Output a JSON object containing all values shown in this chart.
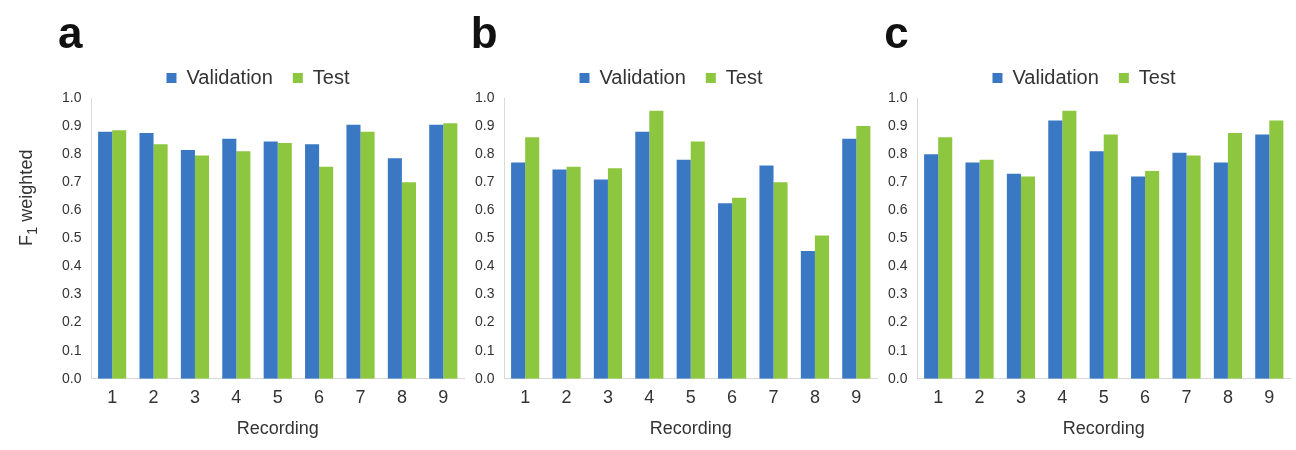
{
  "chart_data": [
    {
      "type": "bar",
      "title": "a",
      "xlabel": "Recording",
      "ylabel": "F$_{1}$ weighted",
      "categories": [
        "1",
        "2",
        "3",
        "4",
        "5",
        "6",
        "7",
        "8",
        "9"
      ],
      "series": [
        {
          "name": "Validation",
          "color": "#3a78c4",
          "values": [
            0.88,
            0.875,
            0.815,
            0.855,
            0.845,
            0.835,
            0.905,
            0.785,
            0.905
          ]
        },
        {
          "name": "Test",
          "color": "#8dc63f",
          "values": [
            0.885,
            0.835,
            0.795,
            0.81,
            0.84,
            0.755,
            0.88,
            0.7,
            0.91
          ]
        }
      ],
      "ylim": [
        0,
        1
      ],
      "yticks": [
        {
          "value": 0,
          "label": "0.0"
        },
        {
          "value": 0.1,
          "label": "0.1"
        },
        {
          "value": 0.2,
          "label": "0.2"
        },
        {
          "value": 0.3,
          "label": "0.3"
        },
        {
          "value": 0.4,
          "label": "0.4"
        },
        {
          "value": 0.5,
          "label": "0.5"
        },
        {
          "value": 0.6,
          "label": "0.6"
        },
        {
          "value": 0.7,
          "label": "0.7"
        },
        {
          "value": 0.8,
          "label": "0.8"
        },
        {
          "value": 0.9,
          "label": "0.9"
        },
        {
          "value": 1,
          "label": "1.0"
        }
      ],
      "grid": false,
      "legend": "top"
    },
    {
      "type": "bar",
      "title": "b",
      "xlabel": "Recording",
      "categories": [
        "1",
        "2",
        "3",
        "4",
        "5",
        "6",
        "7",
        "8",
        "9"
      ],
      "series": [
        {
          "name": "Validation",
          "color": "#3a78c4",
          "values": [
            0.77,
            0.745,
            0.71,
            0.88,
            0.78,
            0.625,
            0.76,
            0.455,
            0.855
          ]
        },
        {
          "name": "Test",
          "color": "#8dc63f",
          "values": [
            0.86,
            0.755,
            0.75,
            0.955,
            0.845,
            0.645,
            0.7,
            0.51,
            0.9
          ]
        }
      ],
      "ylim": [
        0,
        1
      ],
      "yticks": [
        {
          "value": 0,
          "label": "0.0"
        },
        {
          "value": 0.1,
          "label": "0.1"
        },
        {
          "value": 0.2,
          "label": "0.2"
        },
        {
          "value": 0.3,
          "label": "0.3"
        },
        {
          "value": 0.4,
          "label": "0.4"
        },
        {
          "value": 0.5,
          "label": "0.5"
        },
        {
          "value": 0.6,
          "label": "0.6"
        },
        {
          "value": 0.7,
          "label": "0.7"
        },
        {
          "value": 0.8,
          "label": "0.8"
        },
        {
          "value": 0.9,
          "label": "0.9"
        },
        {
          "value": 1,
          "label": "1.0"
        }
      ],
      "grid": false,
      "legend": "top"
    },
    {
      "type": "bar",
      "title": "c",
      "xlabel": "Recording",
      "categories": [
        "1",
        "2",
        "3",
        "4",
        "5",
        "6",
        "7",
        "8",
        "9"
      ],
      "series": [
        {
          "name": "Validation",
          "color": "#3a78c4",
          "values": [
            0.8,
            0.77,
            0.73,
            0.92,
            0.81,
            0.72,
            0.805,
            0.77,
            0.87
          ]
        },
        {
          "name": "Test",
          "color": "#8dc63f",
          "values": [
            0.86,
            0.78,
            0.72,
            0.955,
            0.87,
            0.74,
            0.795,
            0.875,
            0.92
          ]
        }
      ],
      "ylim": [
        0,
        1
      ],
      "yticks": [
        {
          "value": 0,
          "label": "0.0"
        },
        {
          "value": 0.1,
          "label": "0.1"
        },
        {
          "value": 0.2,
          "label": "0.2"
        },
        {
          "value": 0.3,
          "label": "0.3"
        },
        {
          "value": 0.4,
          "label": "0.4"
        },
        {
          "value": 0.5,
          "label": "0.5"
        },
        {
          "value": 0.6,
          "label": "0.6"
        },
        {
          "value": 0.7,
          "label": "0.7"
        },
        {
          "value": 0.8,
          "label": "0.8"
        },
        {
          "value": 0.9,
          "label": "0.9"
        },
        {
          "value": 1,
          "label": "1.0"
        }
      ],
      "grid": false,
      "legend": "top"
    }
  ]
}
